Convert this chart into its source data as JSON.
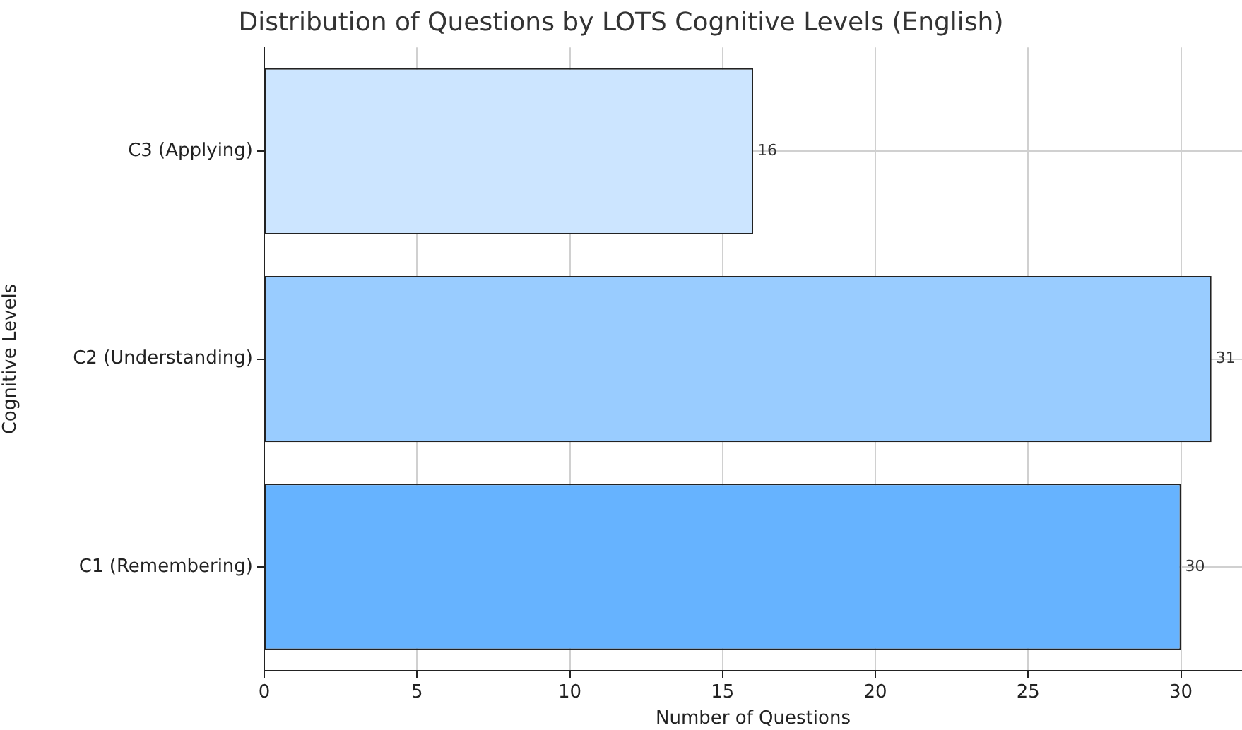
{
  "chart_data": {
    "type": "bar",
    "orientation": "horizontal",
    "title": "Distribution of Questions by LOTS Cognitive Levels (English)",
    "xlabel": "Number of Questions",
    "ylabel": "Cognitive Levels",
    "categories": [
      "C3 (Applying)",
      "C2 (Understanding)",
      "C1 (Remembering)"
    ],
    "values": [
      16,
      31,
      30
    ],
    "colors": [
      "#cce5ff",
      "#99ccff",
      "#66b3ff"
    ],
    "xlim": [
      0,
      32
    ],
    "xticks": [
      0,
      5,
      10,
      15,
      20,
      25,
      30
    ],
    "grid": true,
    "data_labels": true
  }
}
